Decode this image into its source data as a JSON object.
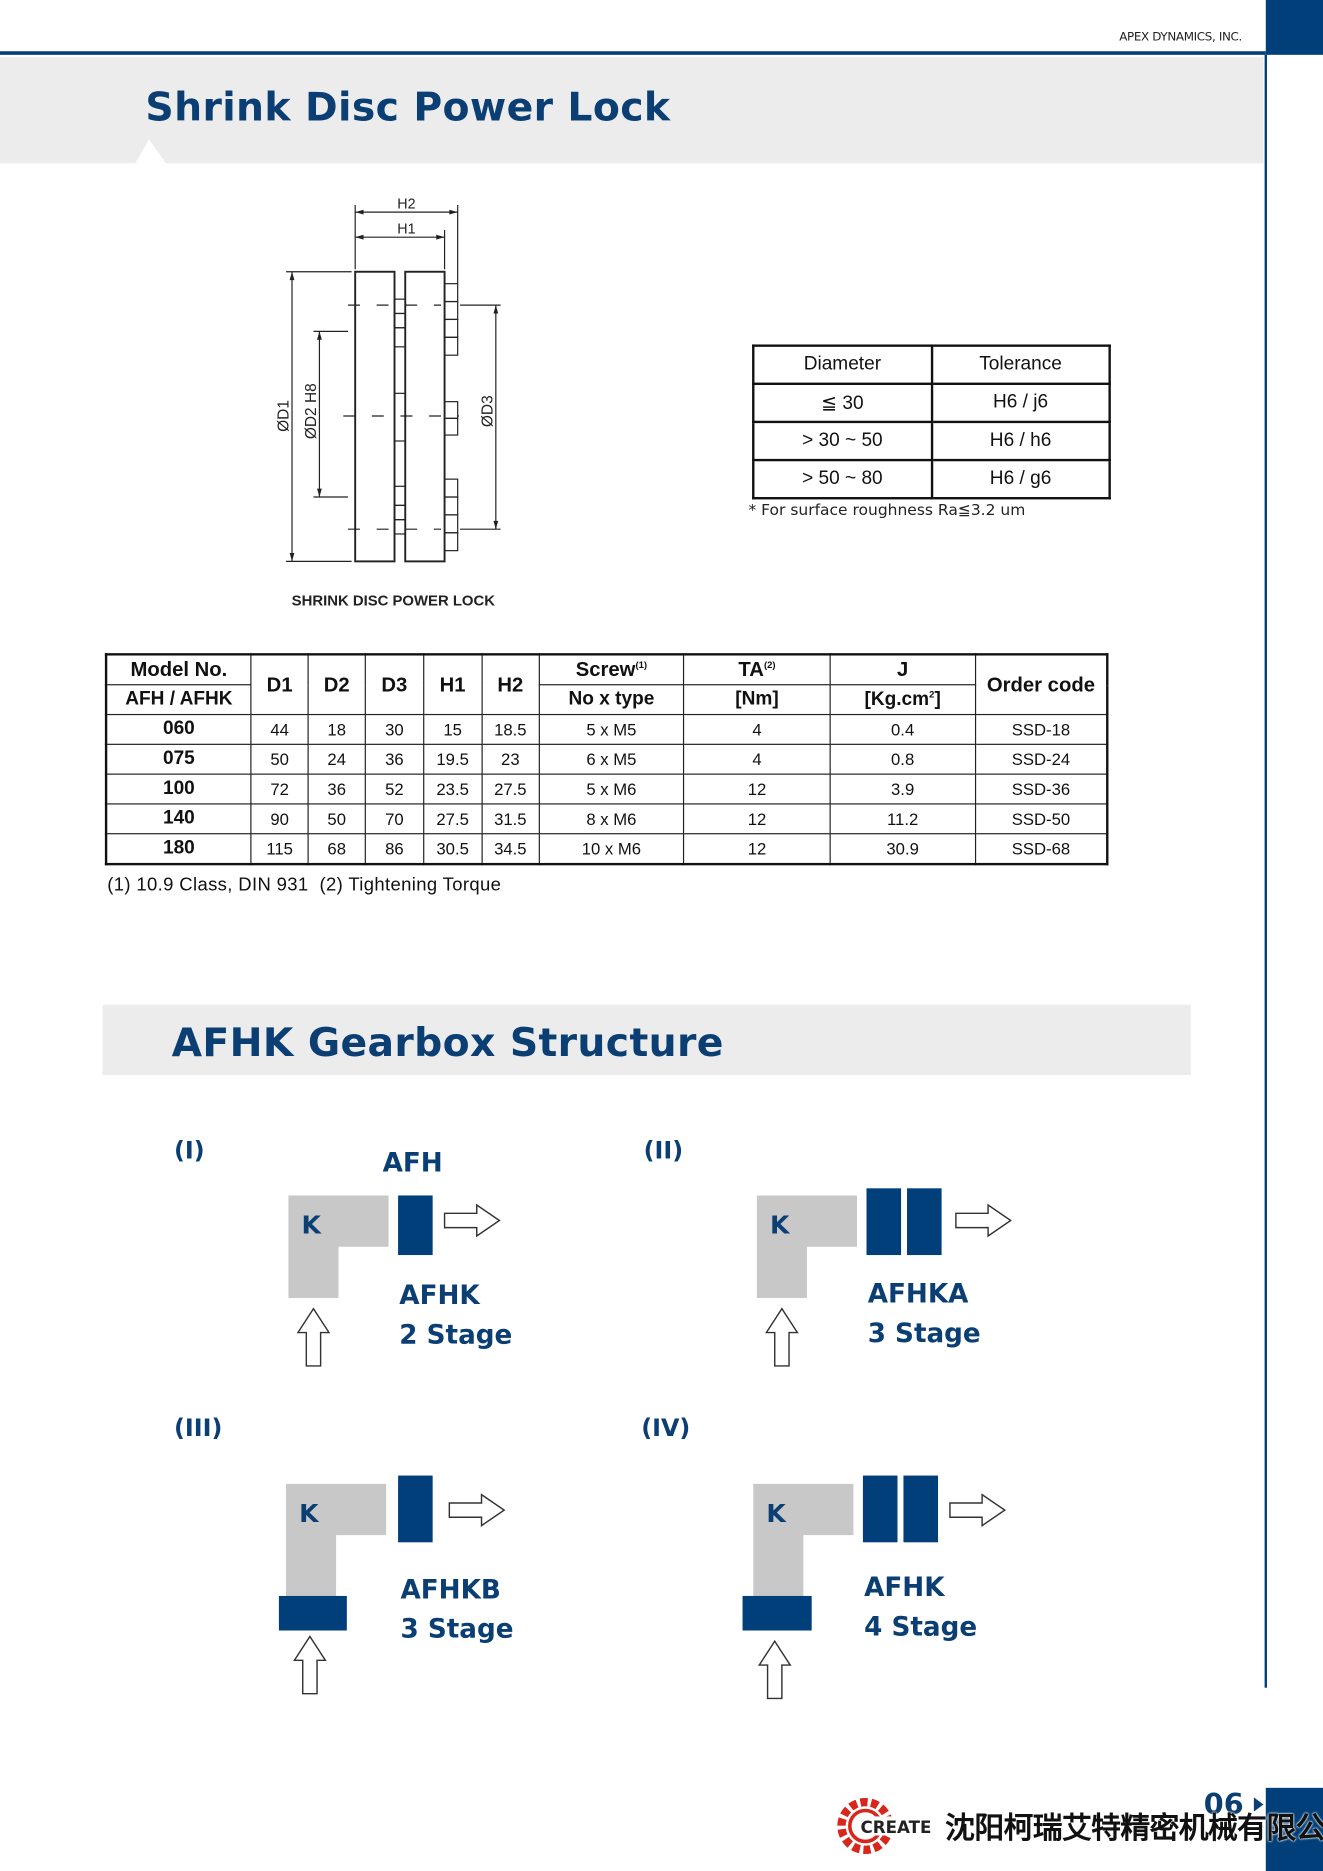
{
  "header": {
    "company": "APEX DYNAMICS, INC.",
    "title": "Shrink Disc Power Lock",
    "accent": "#003f7a"
  },
  "drawing": {
    "caption": "SHRINK DISC POWER LOCK",
    "dims": {
      "h2": "H2",
      "h1": "H1",
      "d1": "ØD1",
      "d2": "ØD2 H8",
      "d3": "ØD3"
    }
  },
  "tolerance": {
    "headers": [
      "Diameter",
      "Tolerance"
    ],
    "rows": [
      [
        "≦ 30",
        "H6 / j6"
      ],
      [
        "> 30 ~ 50",
        "H6 / h6"
      ],
      [
        "> 50 ~ 80",
        "H6 / g6"
      ]
    ],
    "note": "* For surface roughness Ra≦3.2 um"
  },
  "spec": {
    "h_model": "Model No.",
    "h_model2": "AFH / AFHK",
    "h_d1": "D1",
    "h_d2": "D2",
    "h_d3": "D3",
    "h_h1": "H1",
    "h_h2": "H2",
    "h_screw": "Screw",
    "h_screw_sup": "(1)",
    "h_screw2": "No x type",
    "h_ta": "TA",
    "h_ta_sup": "(2)",
    "h_ta2": "[Nm]",
    "h_j": "J",
    "h_j2": "[Kg.cm",
    "h_j2_sup": "2",
    "h_j2_end": "]",
    "h_order": "Order code",
    "rows": [
      [
        "060",
        "44",
        "18",
        "30",
        "15",
        "18.5",
        "5 x M5",
        "4",
        "0.4",
        "SSD-18"
      ],
      [
        "075",
        "50",
        "24",
        "36",
        "19.5",
        "23",
        "6 x M5",
        "4",
        "0.8",
        "SSD-24"
      ],
      [
        "100",
        "72",
        "36",
        "52",
        "23.5",
        "27.5",
        "5 x M6",
        "12",
        "3.9",
        "SSD-36"
      ],
      [
        "140",
        "90",
        "50",
        "70",
        "27.5",
        "31.5",
        "8 x M6",
        "12",
        "11.2",
        "SSD-50"
      ],
      [
        "180",
        "115",
        "68",
        "86",
        "30.5",
        "34.5",
        "10 x M6",
        "12",
        "30.9",
        "SSD-68"
      ]
    ],
    "footnote": "(1) 10.9 Class, DIN 931  (2) Tightening Torque"
  },
  "gearbox": {
    "title": "AFHK Gearbox Structure",
    "k": "K",
    "items": [
      {
        "num": "(I)",
        "top": "AFH",
        "name": "AFHK",
        "stage": "2 Stage"
      },
      {
        "num": "(II)",
        "name": "AFHKA",
        "stage": "3 Stage"
      },
      {
        "num": "(III)",
        "name": "AFHKB",
        "stage": "3 Stage"
      },
      {
        "num": "(IV)",
        "name": "AFHK",
        "stage": "4 Stage"
      }
    ]
  },
  "footer": {
    "page": "06",
    "logo_text": "CREATE",
    "company_cn": "沈阳柯瑞艾特精密机械有限公司",
    "logo_color": "#d9261c"
  }
}
